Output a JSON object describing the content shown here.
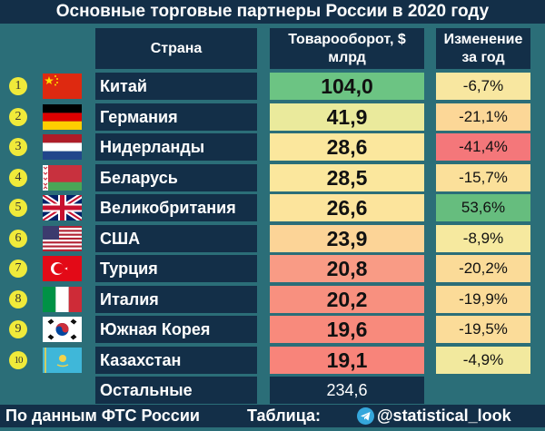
{
  "title": "Основные торговые партнеры России в 2020 году",
  "headers": {
    "country": "Страна",
    "turnover_line1": "Товарооборот, $",
    "turnover_line2": "млрд",
    "change_line1": "Изменение",
    "change_line2": "за год"
  },
  "rows": [
    {
      "rank": "1",
      "country": "Китай",
      "flag": "china-flag",
      "value": "104,0",
      "change": "-6,7%",
      "value_color": "#6cc483",
      "change_color": "#f8e7a0"
    },
    {
      "rank": "2",
      "country": "Германия",
      "flag": "germany-flag",
      "value": "41,9",
      "change": "-21,1%",
      "value_color": "#eaea9c",
      "change_color": "#fcd797"
    },
    {
      "rank": "3",
      "country": "Нидерланды",
      "flag": "netherlands-flag",
      "value": "28,6",
      "change": "-41,4%",
      "value_color": "#fbe79d",
      "change_color": "#f4777a"
    },
    {
      "rank": "4",
      "country": "Беларусь",
      "flag": "belarus-flag",
      "value": "28,5",
      "change": "-15,7%",
      "value_color": "#fbe79d",
      "change_color": "#fbe09a"
    },
    {
      "rank": "5",
      "country": "Великобритания",
      "flag": "uk-flag",
      "value": "26,6",
      "change": "53,6%",
      "value_color": "#fce49c",
      "change_color": "#66bd7e"
    },
    {
      "rank": "6",
      "country": "США",
      "flag": "usa-flag",
      "value": "23,9",
      "change": "-8,9%",
      "value_color": "#fcd497",
      "change_color": "#f6e99f"
    },
    {
      "rank": "7",
      "country": "Турция",
      "flag": "turkey-flag",
      "value": "20,8",
      "change": "-20,2%",
      "value_color": "#f99b85",
      "change_color": "#fbdb98"
    },
    {
      "rank": "8",
      "country": "Италия",
      "flag": "italy-flag",
      "value": "20,2",
      "change": "-19,9%",
      "value_color": "#f8907f",
      "change_color": "#fbdb98"
    },
    {
      "rank": "9",
      "country": "Южная Корея",
      "flag": "south-korea-flag",
      "value": "19,6",
      "change": "-19,5%",
      "value_color": "#f88a7c",
      "change_color": "#fbdc99"
    },
    {
      "rank": "10",
      "country": "Казахстан",
      "flag": "kazakhstan-flag",
      "value": "19,1",
      "change": "-4,9%",
      "value_color": "#f8847a",
      "change_color": "#f2e99e"
    }
  ],
  "other": {
    "country": "Остальные",
    "value": "234,6"
  },
  "footer": {
    "source": "По данным ФТС России",
    "table_label": "Таблица:",
    "telegram_icon": "telegram-icon",
    "handle": "@statistical_look"
  },
  "chart_data": {
    "type": "table",
    "title": "Основные торговые партнеры России в 2020 году",
    "columns": [
      "Страна",
      "Товарооборот, $ млрд",
      "Изменение за год"
    ],
    "categories": [
      "Китай",
      "Германия",
      "Нидерланды",
      "Беларусь",
      "Великобритания",
      "США",
      "Турция",
      "Италия",
      "Южная Корея",
      "Казахстан",
      "Остальные"
    ],
    "series": [
      {
        "name": "Товарооборот, $ млрд",
        "values": [
          104.0,
          41.9,
          28.6,
          28.5,
          26.6,
          23.9,
          20.8,
          20.2,
          19.6,
          19.1,
          234.6
        ]
      },
      {
        "name": "Изменение за год, %",
        "values": [
          -6.7,
          -21.1,
          -41.4,
          -15.7,
          53.6,
          -8.9,
          -20.2,
          -19.9,
          -19.5,
          -4.9,
          null
        ]
      }
    ],
    "annotations": [
      "По данным ФТС России",
      "Таблица: @statistical_look"
    ]
  }
}
